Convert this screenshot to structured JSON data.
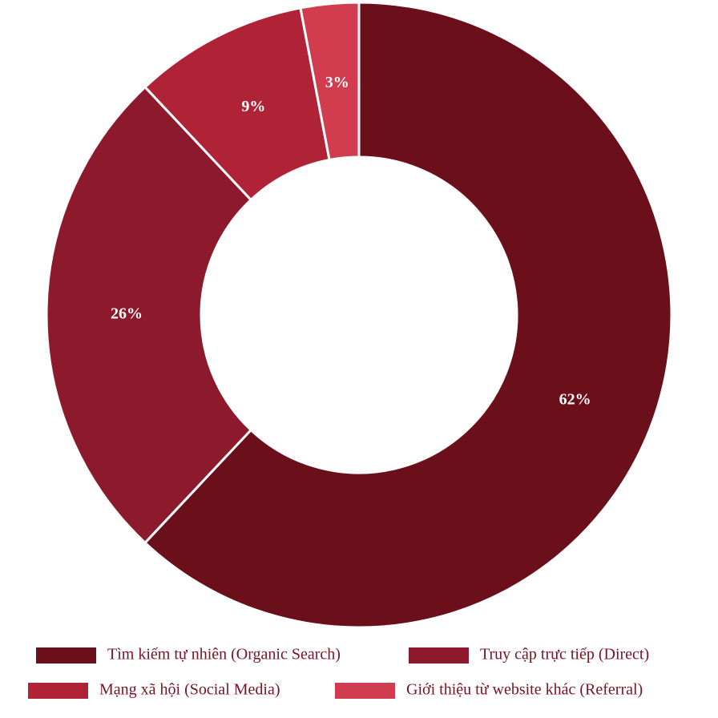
{
  "chart_data": {
    "type": "donut",
    "categories": [
      "Tìm kiếm tự nhiên (Organic Search)",
      "Truy cập trực tiếp (Direct)",
      "Mạng xã hội (Social Media)",
      "Giới thiệu từ website khác (Referral)"
    ],
    "values": [
      62,
      26,
      9,
      3
    ],
    "value_labels": [
      "62%",
      "26%",
      "9%",
      "3%"
    ],
    "colors": [
      "#6b0f1a",
      "#8c1a2c",
      "#b02236",
      "#d23c4f"
    ],
    "legend": "bottom"
  }
}
